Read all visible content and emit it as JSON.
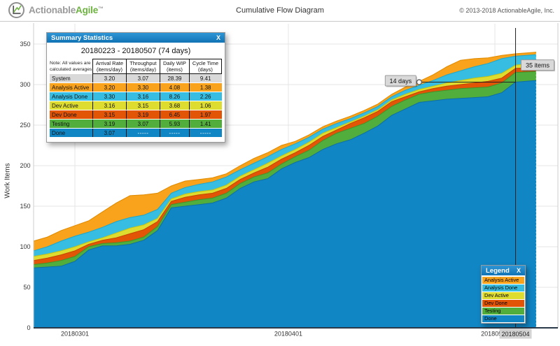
{
  "header": {
    "brand_gray": "Actionable",
    "brand_green": "Agile",
    "trademark": "™",
    "title": "Cumulative Flow Diagram",
    "copyright": "© 2013-2018 ActionableAgile, Inc."
  },
  "colors": {
    "panel_header_top": "#2e96d6",
    "panel_header_bottom": "#1173b4",
    "brand_green": "#6cb33f",
    "system_row": "#d9d9d9",
    "axis_line": "#2b3a4a"
  },
  "summary_panel": {
    "title": "Summary Statistics",
    "close_label": "X",
    "subtitle": "20180223 - 20180507 (74 days)",
    "note_line1": "Note: All values are",
    "note_line2": "calculated averages",
    "columns": [
      {
        "title": "Arrival Rate",
        "unit": "(items/day)"
      },
      {
        "title": "Throughput",
        "unit": "(items/day)"
      },
      {
        "title": "Daily WIP",
        "unit": "(items)"
      },
      {
        "title": "Cycle Time",
        "unit": "(days)"
      }
    ],
    "rows": [
      {
        "label": "System",
        "color": "#d9d9d9",
        "values": [
          "3.20",
          "3.07",
          "28.39",
          "9.41"
        ]
      },
      {
        "label": "Analysis Active",
        "color": "#f9a21b",
        "values": [
          "3.20",
          "3.30",
          "4.08",
          "1.38"
        ]
      },
      {
        "label": "Analysis Done",
        "color": "#36bde1",
        "values": [
          "3.30",
          "3.16",
          "8.26",
          "2.26"
        ]
      },
      {
        "label": "Dev Active",
        "color": "#dedc2f",
        "values": [
          "3.16",
          "3.15",
          "3.68",
          "1.06"
        ]
      },
      {
        "label": "Dev Done",
        "color": "#e25406",
        "values": [
          "3.15",
          "3.19",
          "6.45",
          "1.97"
        ]
      },
      {
        "label": "Testing",
        "color": "#52ae3c",
        "values": [
          "3.19",
          "3.07",
          "5.93",
          "1.41"
        ]
      },
      {
        "label": "Done",
        "color": "#1186c4",
        "values": [
          "3.07",
          "-----",
          "-----",
          "-----"
        ]
      }
    ]
  },
  "legend_panel": {
    "title": "Legend",
    "close_label": "X",
    "items": [
      {
        "label": "Analysis Active",
        "color": "#f9a21b"
      },
      {
        "label": "Analysis Done",
        "color": "#36bde1"
      },
      {
        "label": "Dev Active",
        "color": "#dedc2f"
      },
      {
        "label": "Dev Done",
        "color": "#e25406"
      },
      {
        "label": "Testing",
        "color": "#52ae3c"
      },
      {
        "label": "Done",
        "color": "#1186c4"
      }
    ]
  },
  "chart_data": {
    "type": "area",
    "subtype": "cumulative-flow-stacked",
    "title": "Cumulative Flow Diagram",
    "ylabel": "Work Items",
    "start_date": "20180223",
    "end_date": "20180507",
    "total_days": 74,
    "ylim": [
      0,
      350
    ],
    "y_ticks": [
      0,
      50,
      100,
      150,
      200,
      250,
      300,
      350
    ],
    "x_ticks": [
      {
        "label": "20180301",
        "day": 6
      },
      {
        "label": "20180401",
        "day": 37
      },
      {
        "label": "201805",
        "day": 66.5
      }
    ],
    "month_gridline_days": [
      6,
      37,
      67
    ],
    "crosshair": {
      "label": "20180504",
      "day": 70
    },
    "annotations": {
      "cycle_time": {
        "label": "14 days",
        "from_day": 56,
        "to_day": 70,
        "value": 303
      },
      "wip": {
        "label": "35 items",
        "day": 70,
        "label_value": 324
      }
    },
    "days": [
      0,
      2,
      4,
      6,
      8,
      10,
      12,
      14,
      16,
      18,
      20,
      22,
      24,
      26,
      28,
      30,
      32,
      34,
      36,
      38,
      40,
      42,
      44,
      46,
      48,
      50,
      52,
      54,
      56,
      58,
      60,
      62,
      64,
      66,
      68,
      70,
      73
    ],
    "series": [
      {
        "name": "Done",
        "fill": "#1186c4",
        "stroke": "#0d6ea4",
        "cumulative": [
          74,
          75,
          76,
          82,
          96,
          101,
          101,
          103,
          108,
          120,
          148,
          150,
          152,
          154,
          160,
          172,
          180,
          184,
          196,
          204,
          210,
          220,
          227,
          232,
          240,
          249,
          262,
          270,
          278,
          280,
          282,
          283,
          284,
          285,
          290,
          303,
          305
        ]
      },
      {
        "name": "Testing",
        "fill": "#52ae3c",
        "stroke": "#3f9429",
        "cumulative": [
          78,
          80,
          83,
          88,
          100,
          104,
          105,
          107,
          112,
          125,
          152,
          155,
          158,
          160,
          166,
          178,
          186,
          191,
          202,
          211,
          219,
          231,
          240,
          246,
          252,
          261,
          273,
          281,
          288,
          291,
          293,
          295,
          296,
          297,
          302,
          315,
          316
        ]
      },
      {
        "name": "Dev Done",
        "fill": "#e25406",
        "stroke": "#c24400",
        "cumulative": [
          83,
          86,
          90,
          95,
          103,
          108,
          111,
          116,
          121,
          131,
          156,
          161,
          164,
          166,
          172,
          183,
          191,
          198,
          208,
          216,
          225,
          236,
          244,
          252,
          259,
          267,
          279,
          285,
          291,
          295,
          298,
          300,
          302,
          304,
          308,
          320,
          321
        ]
      },
      {
        "name": "Dev Active",
        "fill": "#dedc2f",
        "stroke": "#c3c414",
        "cumulative": [
          88,
          91,
          95,
          100,
          106,
          111,
          117,
          123,
          127,
          135,
          159,
          165,
          168,
          170,
          176,
          187,
          195,
          203,
          212,
          220,
          229,
          240,
          247,
          254,
          261,
          269,
          281,
          288,
          294,
          298,
          302,
          305,
          308,
          310,
          314,
          324,
          327
        ]
      },
      {
        "name": "Analysis Done",
        "fill": "#36bde1",
        "stroke": "#1ba6cc",
        "cumulative": [
          95,
          100,
          107,
          113,
          118,
          124,
          131,
          136,
          139,
          146,
          166,
          173,
          177,
          180,
          186,
          195,
          203,
          211,
          220,
          227,
          235,
          245,
          252,
          258,
          265,
          273,
          285,
          293,
          299,
          305,
          312,
          317,
          322,
          326,
          332,
          335,
          337
        ]
      },
      {
        "name": "Analysis Active",
        "fill": "#f9a21b",
        "stroke": "#de8a00",
        "cumulative": [
          107,
          112,
          120,
          126,
          132,
          143,
          154,
          163,
          164,
          166,
          175,
          181,
          183,
          185,
          190,
          200,
          209,
          216,
          225,
          230,
          238,
          248,
          255,
          261,
          268,
          276,
          288,
          297,
          304,
          312,
          322,
          330,
          332,
          333,
          336,
          338,
          340
        ]
      }
    ]
  }
}
